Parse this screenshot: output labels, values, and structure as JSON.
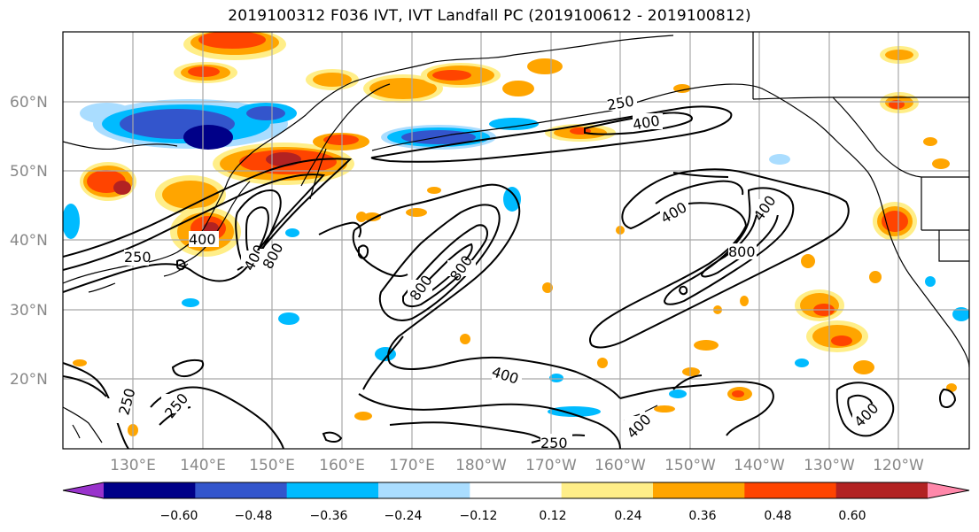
{
  "title": "2019100312 F036 IVT, IVT Landfall PC (2019100612 - 2019100812)",
  "lat_labels": [
    "60°N",
    "50°N",
    "40°N",
    "30°N",
    "20°N"
  ],
  "lon_labels": [
    "130°E",
    "140°E",
    "150°E",
    "160°E",
    "170°E",
    "180°W",
    "170°W",
    "160°W",
    "150°W",
    "140°W",
    "130°W",
    "120°W"
  ],
  "contour_labels": [
    "250",
    "400",
    "400",
    "800",
    "250",
    "800",
    "400",
    "800",
    "400",
    "800",
    "400",
    "250",
    "400",
    "250",
    "400",
    "250",
    "400"
  ],
  "colorbar": {
    "colors": [
      "#9933cc",
      "#000088",
      "#3355cc",
      "#00bbff",
      "#aaddff",
      "#ffffff",
      "#ffee88",
      "#ffa500",
      "#ff4400",
      "#b22222",
      "#ff88aa"
    ],
    "tick_labels": [
      "−0.60",
      "−0.48",
      "−0.36",
      "−0.24",
      "−0.12",
      "0.12",
      "0.24",
      "0.36",
      "0.48",
      "0.60"
    ]
  }
}
